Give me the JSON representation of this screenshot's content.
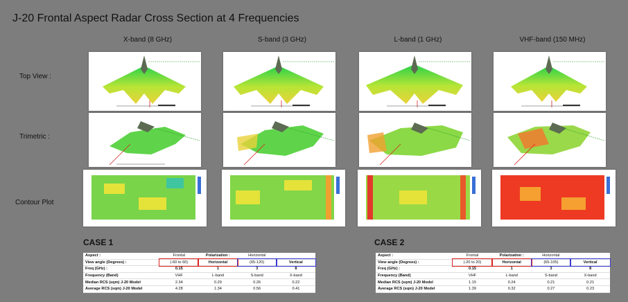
{
  "title": "J-20 Frontal Aspect Radar Cross Section at 4 Frequencies",
  "columns": [
    "X-band (8 GHz)",
    "S-band (3 GHz)",
    "L-band (1 GHz)",
    "VHF-band (150 MHz)"
  ],
  "rows": [
    "Top View :",
    "Trimetric :",
    "Contour Plot"
  ],
  "case1": {
    "title": "CASE 1",
    "aspect_label": "Aspect :",
    "aspect_value": "Frontal",
    "pol_label": "Polarization :",
    "pol_value": "Horizontal",
    "view_label": "View angle (Degrees) :",
    "view_range1": "(-60 to 60)",
    "view_pol1": "Horizontal",
    "view_range2": "(65-120)",
    "view_pol2": "Vertical",
    "freq_label": "Freq (GHz) :",
    "freq": [
      "0.15",
      "1",
      "3",
      "8"
    ],
    "band_label": "Frequency (Band)",
    "band": [
      "VHF",
      "L-band",
      "S-band",
      "X-band"
    ],
    "median_label": "Median RCS (sqm) J-20 Model",
    "median": [
      "2.34",
      "0.29",
      "0.26",
      "0.22"
    ],
    "average_label": "Average RCS (sqm) J-20 Model",
    "average": [
      "4.28",
      "1.34",
      "0.56",
      "0.41"
    ]
  },
  "case2": {
    "title": "CASE 2",
    "aspect_label": "Aspect :",
    "aspect_value": "Frontal",
    "pol_label": "Polarization :",
    "pol_value": "Horizontal",
    "view_label": "View angle (Degrees) :",
    "view_range1": "(-20 to 20)",
    "view_pol1": "Horizontal",
    "view_range2": "(65-105)",
    "view_pol2": "Vertical",
    "freq_label": "Freq (GHz) :",
    "freq": [
      "0.15",
      "1",
      "3",
      "8"
    ],
    "band_label": "Frequency (Band)",
    "band": [
      "VHF",
      "L-band",
      "S-band",
      "X-band"
    ],
    "median_label": "Median RCS (sqm) J-20 Model",
    "median": [
      "1.15",
      "0.24",
      "0.21",
      "0.21"
    ],
    "average_label": "Average RCS (sqm) J-20 Model",
    "average": [
      "1.39",
      "0.32",
      "0.27",
      "0.23"
    ]
  },
  "colors": {
    "background": "#7d7d7d",
    "highlight_red": "#d22222",
    "highlight_blue": "#3a3ad0"
  }
}
